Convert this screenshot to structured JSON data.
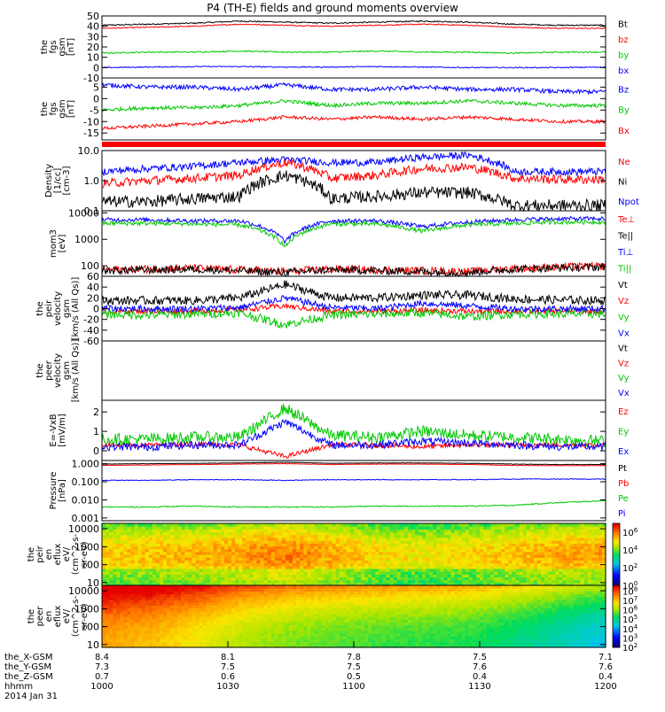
{
  "title": "P4 (TH-E) fields and ground moments overview",
  "colors": {
    "black": "#000000",
    "red": "#ff0000",
    "green": "#00c800",
    "blue": "#0000ff"
  },
  "chart_data": [
    {
      "type": "line",
      "ylabel": "the\nfgs\ngsm\n[nT]",
      "ylim": [
        -10,
        50
      ],
      "yticks": [
        {
          "label": "50",
          "v": 50
        },
        {
          "label": "40",
          "v": 40
        },
        {
          "label": "30",
          "v": 30
        },
        {
          "label": "20",
          "v": 20
        },
        {
          "label": "10",
          "v": 10
        },
        {
          "label": "0",
          "v": 0
        },
        {
          "label": "-10",
          "v": -10
        }
      ],
      "series": [
        {
          "name": "Bt",
          "color": "black",
          "base": [
            41,
            42,
            43,
            45,
            44,
            43,
            44,
            45,
            44,
            42,
            41,
            41
          ],
          "noise": 0.6
        },
        {
          "name": "bz",
          "color": "red",
          "base": [
            38,
            39,
            40,
            42,
            41,
            40,
            41,
            42,
            41,
            39,
            38,
            38
          ],
          "noise": 0.5
        },
        {
          "name": "by",
          "color": "green",
          "base": [
            14,
            15,
            15,
            16,
            15,
            15,
            16,
            15,
            15,
            14,
            15,
            15
          ],
          "noise": 0.6
        },
        {
          "name": "bx",
          "color": "blue",
          "base": [
            0,
            0.5,
            1,
            1,
            0.5,
            0.5,
            1,
            0.5,
            0,
            0,
            0,
            0.5
          ],
          "noise": 0.5
        }
      ]
    },
    {
      "type": "line",
      "ylabel": "the\nfgs\ngsm\n[nT]",
      "ylim": [
        -18,
        9
      ],
      "yticks": [
        {
          "label": "5",
          "v": 5
        },
        {
          "label": "0",
          "v": 0
        },
        {
          "label": "-5",
          "v": -5
        },
        {
          "label": "-10",
          "v": -10
        },
        {
          "label": "-15",
          "v": -15
        }
      ],
      "series": [
        {
          "name": "Bz",
          "color": "blue",
          "base": [
            6,
            5,
            5,
            4,
            6,
            4,
            4,
            5,
            4,
            4,
            3,
            3
          ],
          "noise": 0.9
        },
        {
          "name": "By",
          "color": "green",
          "base": [
            -5,
            -4,
            -4,
            -3,
            -1,
            -3,
            -2,
            -2,
            -1,
            -2,
            -3,
            -3
          ],
          "noise": 0.8
        },
        {
          "name": "Bx",
          "color": "red",
          "base": [
            -13,
            -12,
            -11,
            -10,
            -8,
            -9,
            -8,
            -9,
            -8,
            -9,
            -10,
            -10
          ],
          "noise": 0.7
        }
      ]
    },
    {
      "type": "line",
      "ylabel": "Density\n[1/cc]\n[cm-3]",
      "scale": "log",
      "ylim": [
        0.1,
        10
      ],
      "yticks": [
        {
          "label": "10.0",
          "v": 10
        },
        {
          "label": "1.0",
          "v": 1
        },
        {
          "label": "0.1",
          "v": 0.1
        }
      ],
      "series": [
        {
          "name": "Ne",
          "color": "red",
          "base": [
            0.8,
            1,
            1.2,
            1.5,
            4,
            1.2,
            1.5,
            2.5,
            2.8,
            1.2,
            1.1,
            1.1
          ],
          "noise": 0.15
        },
        {
          "name": "Ni",
          "color": "black",
          "base": [
            0.2,
            0.2,
            0.25,
            0.3,
            1.5,
            0.25,
            0.3,
            0.4,
            0.4,
            0.15,
            0.15,
            0.15
          ],
          "noise": 0.2
        },
        {
          "name": "Npot",
          "color": "blue",
          "base": [
            2,
            2.5,
            3,
            4,
            5,
            4,
            4,
            6,
            7,
            2,
            2,
            2
          ],
          "noise": 0.12
        }
      ]
    },
    {
      "type": "line",
      "ylabel": "mom3\n[eV]",
      "scale": "log",
      "ylim": [
        40,
        12000
      ],
      "yticks": [
        {
          "label": "10000",
          "v": 10000
        },
        {
          "label": "1000",
          "v": 1000
        },
        {
          "label": "100",
          "v": 100
        }
      ],
      "series": [
        {
          "name": "Te⊥",
          "color": "red",
          "base": [
            70,
            75,
            80,
            70,
            60,
            75,
            70,
            65,
            60,
            80,
            90,
            95
          ],
          "noise": 0.15
        },
        {
          "name": "Te||",
          "color": "black",
          "base": [
            65,
            70,
            75,
            65,
            55,
            70,
            65,
            60,
            55,
            75,
            85,
            90
          ],
          "noise": 0.15
        },
        {
          "name": "Ti⊥",
          "color": "blue",
          "base": [
            5500,
            5500,
            5000,
            5000,
            800,
            5000,
            5000,
            3000,
            4500,
            5500,
            6000,
            6000
          ],
          "noise": 0.08
        },
        {
          "name": "Ti||",
          "color": "green",
          "base": [
            4000,
            4000,
            3800,
            3500,
            500,
            3800,
            3800,
            2000,
            3500,
            4000,
            4500,
            4500
          ],
          "noise": 0.08
        }
      ]
    },
    {
      "type": "line",
      "ylabel": "the\npeir\nvelocity\ngsm\n[km/s (All Qs)]",
      "ylim": [
        -60,
        60
      ],
      "yticks": [
        {
          "label": "60",
          "v": 60
        },
        {
          "label": "40",
          "v": 40
        },
        {
          "label": "20",
          "v": 20
        },
        {
          "label": "0",
          "v": 0
        },
        {
          "label": "-20",
          "v": -20
        },
        {
          "label": "-40",
          "v": -40
        },
        {
          "label": "-60",
          "v": -60
        }
      ],
      "series": [
        {
          "name": "Vt",
          "color": "black",
          "base": [
            15,
            15,
            15,
            20,
            45,
            20,
            20,
            25,
            25,
            18,
            16,
            15
          ],
          "noise": 8
        },
        {
          "name": "Vz",
          "color": "red",
          "base": [
            -5,
            -5,
            -5,
            -2,
            5,
            -5,
            -5,
            -3,
            -5,
            -5,
            -5,
            -5
          ],
          "noise": 5
        },
        {
          "name": "Vy",
          "color": "green",
          "base": [
            -10,
            -12,
            -10,
            -8,
            -30,
            -12,
            -10,
            -8,
            -15,
            -10,
            -10,
            -10
          ],
          "noise": 8
        },
        {
          "name": "Vx",
          "color": "blue",
          "base": [
            0,
            0,
            0,
            2,
            20,
            2,
            0,
            10,
            5,
            0,
            0,
            0
          ],
          "noise": 6
        }
      ]
    },
    {
      "type": "line",
      "ylabel": "the\npeer\nvelocity\ngsm\n[km/s (All Qs)]",
      "ylim": [
        -60,
        60
      ],
      "yticks": [],
      "series": [
        {
          "name": "Vt",
          "color": "black",
          "base": [],
          "noise": 0
        },
        {
          "name": "Vz",
          "color": "red",
          "base": [],
          "noise": 0
        },
        {
          "name": "Vy",
          "color": "green",
          "base": [],
          "noise": 0
        },
        {
          "name": "Vx",
          "color": "blue",
          "base": [],
          "noise": 0
        }
      ]
    },
    {
      "type": "line",
      "ylabel": "E=-VxB\n[mV/m]",
      "ylim": [
        -0.5,
        2.6
      ],
      "yticks": [
        {
          "label": "2",
          "v": 2
        },
        {
          "label": "1",
          "v": 1
        },
        {
          "label": "0",
          "v": 0
        }
      ],
      "series": [
        {
          "name": "Ez",
          "color": "red",
          "base": [
            0.3,
            0.3,
            0.35,
            0.3,
            -0.3,
            0.3,
            0.3,
            0.2,
            0.3,
            0.3,
            0.3,
            0.3
          ],
          "noise": 0.12
        },
        {
          "name": "Ey",
          "color": "green",
          "base": [
            0.6,
            0.6,
            0.7,
            0.7,
            2.2,
            0.8,
            0.7,
            1.0,
            0.8,
            0.7,
            0.6,
            0.5
          ],
          "noise": 0.3
        },
        {
          "name": "Ex",
          "color": "blue",
          "base": [
            0.2,
            0.2,
            0.3,
            0.3,
            1.5,
            0.3,
            0.3,
            0.5,
            0.4,
            0.3,
            0.2,
            0.2
          ],
          "noise": 0.2
        }
      ]
    },
    {
      "type": "line",
      "ylabel": "Pressure\n[nPa]",
      "scale": "log",
      "ylim": [
        0.0007,
        1.5
      ],
      "yticks": [
        {
          "label": "1.000",
          "v": 1
        },
        {
          "label": "0.100",
          "v": 0.1
        },
        {
          "label": "0.010",
          "v": 0.01
        },
        {
          "label": "0.001",
          "v": 0.001
        }
      ],
      "series": [
        {
          "name": "Pt",
          "color": "black",
          "base": [
            0.95,
            1.0,
            1.05,
            1.1,
            1.2,
            1.05,
            1.1,
            1.1,
            1.05,
            0.95,
            0.9,
            0.9
          ],
          "noise": 0.01
        },
        {
          "name": "Pb",
          "color": "red",
          "base": [
            0.8,
            0.85,
            0.9,
            0.95,
            1.0,
            0.9,
            0.95,
            0.95,
            0.9,
            0.8,
            0.78,
            0.78
          ],
          "noise": 0.01
        },
        {
          "name": "Pe",
          "color": "green",
          "base": [
            0.004,
            0.004,
            0.0045,
            0.004,
            0.004,
            0.004,
            0.0045,
            0.0045,
            0.0045,
            0.005,
            0.007,
            0.009
          ],
          "noise": 0.03
        },
        {
          "name": "Pi",
          "color": "blue",
          "base": [
            0.12,
            0.12,
            0.13,
            0.13,
            0.12,
            0.13,
            0.13,
            0.13,
            0.13,
            0.14,
            0.14,
            0.14
          ],
          "noise": 0.02
        }
      ]
    },
    {
      "type": "heatmap",
      "ylabel": "the\npeir\nen\neflux\neV/\n(cm^2-s-\nsr-eV)",
      "scale": "log",
      "ylim": [
        7,
        20000
      ],
      "yticks": [
        {
          "label": "10000",
          "v": 10000
        },
        {
          "label": "1000",
          "v": 1000
        },
        {
          "label": "100",
          "v": 100
        },
        {
          "label": "10",
          "v": 10
        }
      ],
      "colorbar": {
        "ticks": [
          {
            "label": "10^6",
            "v": 6
          },
          {
            "label": "10^4",
            "v": 4
          },
          {
            "label": "10^2",
            "v": 2
          },
          {
            "label": "10^0",
            "v": 0
          }
        ],
        "range": [
          0,
          7
        ]
      },
      "profile": [
        3.9,
        4.0,
        4.1,
        4.3,
        4.6,
        4.2,
        3.8,
        3.6,
        3.8,
        4.0,
        4.2,
        4.3
      ]
    },
    {
      "type": "heatmap",
      "ylabel": "the\npeer\nen\neflux\neV/\n(cm^2-s-\nsr-eV)",
      "scale": "log",
      "ylim": [
        7,
        20000
      ],
      "yticks": [
        {
          "label": "10000",
          "v": 10000
        },
        {
          "label": "1000",
          "v": 1000
        },
        {
          "label": "100",
          "v": 100
        },
        {
          "label": "10",
          "v": 10
        }
      ],
      "colorbar": {
        "ticks": [
          {
            "label": "10^8",
            "v": 8
          },
          {
            "label": "10^7",
            "v": 7
          },
          {
            "label": "10^6",
            "v": 6
          },
          {
            "label": "10^5",
            "v": 5
          },
          {
            "label": "10^4",
            "v": 4
          },
          {
            "label": "10^3",
            "v": 3
          },
          {
            "label": "10^2",
            "v": 2
          }
        ],
        "range": [
          2,
          8.6
        ]
      },
      "profile": [
        7.6,
        7.4,
        7.0,
        6.5,
        6.2,
        6.0,
        5.9,
        5.8,
        5.7,
        5.4,
        5.0,
        4.6
      ]
    }
  ],
  "xaxis": {
    "rows": [
      {
        "label": "the_X-GSM",
        "values": [
          "8.4",
          "8.1",
          "7.8",
          "7.5",
          "7.1"
        ]
      },
      {
        "label": "the_Y-GSM",
        "values": [
          "7.3",
          "7.5",
          "7.5",
          "7.6",
          "7.6"
        ]
      },
      {
        "label": "the_Z-GSM",
        "values": [
          "0.7",
          "0.6",
          "0.5",
          "0.4",
          "0.4"
        ]
      },
      {
        "label": "hhmm",
        "values": [
          "1000",
          "1030",
          "1100",
          "1130",
          "1200"
        ]
      }
    ],
    "date": "2014 Jan 31"
  }
}
